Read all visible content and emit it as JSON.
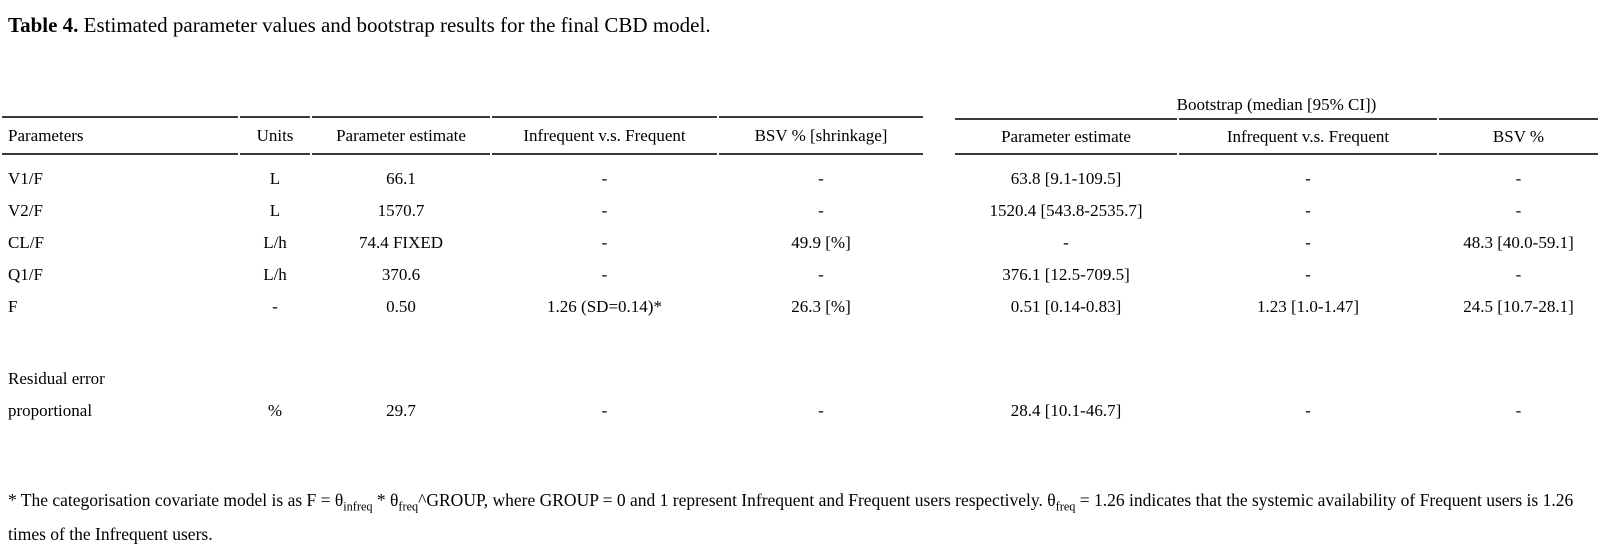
{
  "title": {
    "label": "Table 4.",
    "text": " Estimated parameter values and bootstrap results for the final CBD model."
  },
  "table": {
    "bootstrap_header": "Bootstrap (median [95% CI])",
    "columns": [
      "Parameters",
      "Units",
      "Parameter estimate",
      "Infrequent v.s. Frequent",
      "BSV % [shrinkage]",
      "Parameter estimate",
      "Infrequent v.s. Frequent",
      "BSV %"
    ],
    "rows": [
      {
        "cells": [
          "V1/F",
          "L",
          "66.1",
          "-",
          "-",
          "63.8 [9.1-109.5]",
          "-",
          "-"
        ]
      },
      {
        "cells": [
          "V2/F",
          "L",
          "1570.7",
          "-",
          "-",
          "1520.4 [543.8-2535.7]",
          "-",
          "-"
        ]
      },
      {
        "cells": [
          "CL/F",
          "L/h",
          "74.4 FIXED",
          "-",
          "49.9 [%]",
          "-",
          "-",
          "48.3 [40.0-59.1]"
        ]
      },
      {
        "cells": [
          "Q1/F",
          "L/h",
          "370.6",
          "-",
          "-",
          "376.1 [12.5-709.5]",
          "-",
          "-"
        ]
      },
      {
        "cells": [
          "F",
          "-",
          "0.50",
          "1.26 (SD=0.14)*",
          "26.3 [%]",
          "0.51 [0.14-0.83]",
          "1.23 [1.0-1.47]",
          "24.5 [10.7-28.1]"
        ]
      },
      {
        "spacer": true
      },
      {
        "cells": [
          "Residual error",
          "",
          "",
          "",
          "",
          "",
          "",
          ""
        ]
      },
      {
        "cells": [
          "proportional",
          "%",
          "29.7",
          "-",
          "-",
          "28.4 [10.1-46.7]",
          "-",
          "-"
        ]
      }
    ]
  },
  "footnote": {
    "s1": "* The categorisation covariate model is as F = θ",
    "s2": "infreq",
    "s3": " * θ",
    "s4": "freq",
    "s5": "^GROUP, where GROUP = 0 and 1 represent Infrequent and Frequent users respectively. θ",
    "s6": "freq",
    "s7": " = 1.26 indicates that the systemic availability of Frequent users is 1.26 times of the Infrequent users."
  }
}
